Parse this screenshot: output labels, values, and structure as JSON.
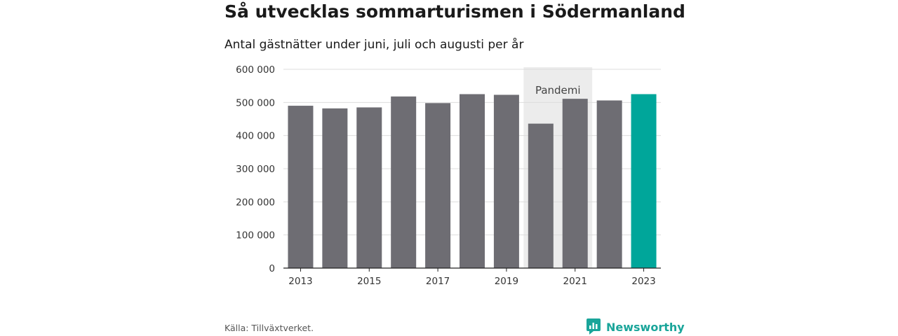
{
  "title": "Så utvecklas sommarturismen i Södermanland",
  "subtitle": "Antal gästnätter under juni, juli och augusti per år",
  "source": "Källa: Tillväxtverket.",
  "brand": "Newsworthy",
  "colors": {
    "bar": "#6e6d73",
    "highlight": "#00a69a",
    "pandemic_band": "#ececec",
    "grid": "#dddddd"
  },
  "chart_data": {
    "type": "bar",
    "x": [
      2013,
      2014,
      2015,
      2016,
      2017,
      2018,
      2019,
      2020,
      2021,
      2022,
      2023
    ],
    "values": [
      490000,
      482000,
      485000,
      518000,
      498000,
      525000,
      523000,
      436000,
      511000,
      506000,
      525000
    ],
    "highlight": [
      2023
    ],
    "ylim": [
      0,
      600000
    ],
    "yticks": [
      0,
      100000,
      200000,
      300000,
      400000,
      500000,
      600000
    ],
    "ytick_labels": [
      "0",
      "100 000",
      "200 000",
      "300 000",
      "400 000",
      "500 000",
      "600 000"
    ],
    "xticks": [
      2013,
      2015,
      2017,
      2019,
      2021,
      2023
    ],
    "xtick_labels": [
      "2013",
      "2015",
      "2017",
      "2019",
      "2021",
      "2023"
    ],
    "annotation": {
      "label": "Pandemi",
      "x_range": [
        2020,
        2021
      ]
    },
    "grid": true
  }
}
